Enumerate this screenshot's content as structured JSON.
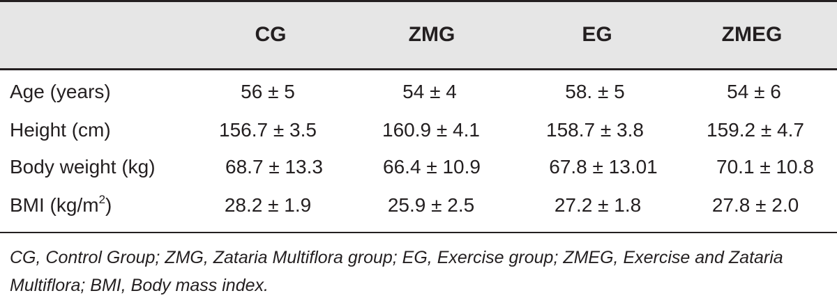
{
  "table": {
    "headers": [
      "",
      "CG",
      "ZMG",
      "EG",
      "ZMEG"
    ],
    "rows": [
      {
        "label": "Age (years)",
        "values": [
          "56 ± 5",
          "54 ± 4",
          "58. ± 5",
          "54 ± 6"
        ]
      },
      {
        "label": "Height (cm)",
        "values": [
          "156.7 ± 3.5",
          "160.9 ± 4.1",
          "158.7 ± 3.8",
          "159.2 ± 4.7"
        ]
      },
      {
        "label": "Body weight (kg)",
        "values": [
          "68.7 ± 13.3",
          "66.4 ± 10.9",
          "67.8 ± 13.01",
          "70.1 ± 10.8"
        ]
      },
      {
        "label_base": "BMI (kg/m",
        "label_sup": "2",
        "label_tail": ")",
        "values": [
          "28.2 ± 1.9",
          "25.9 ± 2.5",
          "27.2 ± 1.8",
          "27.8 ± 2.0"
        ]
      }
    ]
  },
  "footnote": "CG, Control Group; ZMG, Zataria Multiflora group; EG, Exercise group; ZMEG, Exercise and Zataria Multiflora; BMI, Body mass index."
}
